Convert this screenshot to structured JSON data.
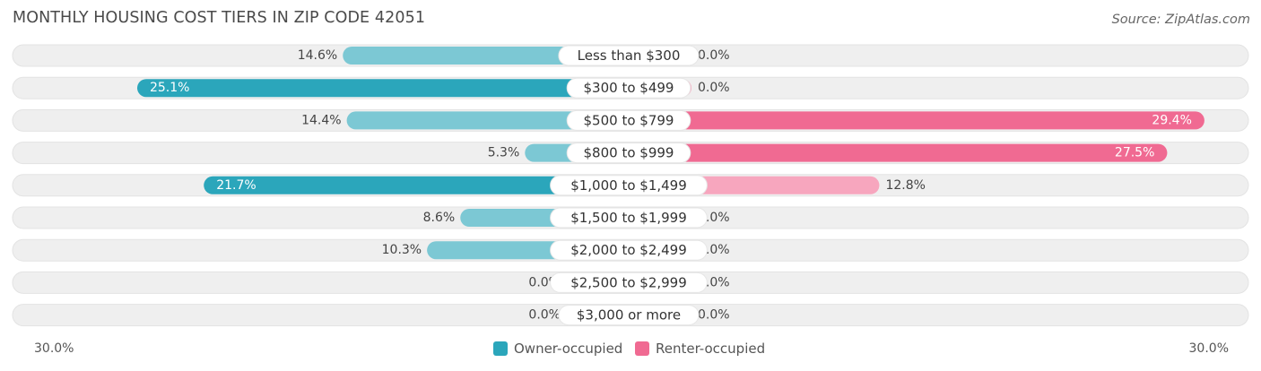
{
  "header": {
    "title": "MONTHLY HOUSING COST TIERS IN ZIP CODE 42051",
    "source": "Source: ZipAtlas.com"
  },
  "colors": {
    "owner_strong": "#2ba6bb",
    "owner_light": "#7cc8d4",
    "renter_strong": "#f06a92",
    "renter_light": "#f7a6be",
    "track": "#efefef"
  },
  "chart_data": {
    "type": "bar",
    "orientation": "horizontal-diverging",
    "categories": [
      "Less than $300",
      "$300 to $499",
      "$500 to $799",
      "$800 to $999",
      "$1,000 to $1,499",
      "$1,500 to $1,999",
      "$2,000 to $2,499",
      "$2,500 to $2,999",
      "$3,000 or more"
    ],
    "series": [
      {
        "name": "Owner-occupied",
        "values": [
          14.6,
          25.1,
          14.4,
          5.3,
          21.7,
          8.6,
          10.3,
          0.0,
          0.0
        ]
      },
      {
        "name": "Renter-occupied",
        "values": [
          0.0,
          0.0,
          29.4,
          27.5,
          12.8,
          0.0,
          0.0,
          0.0,
          0.0
        ]
      }
    ],
    "value_labels": {
      "owner": [
        "14.6%",
        "25.1%",
        "14.4%",
        "5.3%",
        "21.7%",
        "8.6%",
        "10.3%",
        "0.0%",
        "0.0%"
      ],
      "renter": [
        "0.0%",
        "0.0%",
        "29.4%",
        "27.5%",
        "12.8%",
        "0.0%",
        "0.0%",
        "0.0%",
        "0.0%"
      ]
    },
    "xlim": [
      -30,
      30
    ],
    "axis_labels": {
      "left": "30.0%",
      "right": "30.0%"
    },
    "legend_placement": "bottom-center",
    "grid": false
  }
}
